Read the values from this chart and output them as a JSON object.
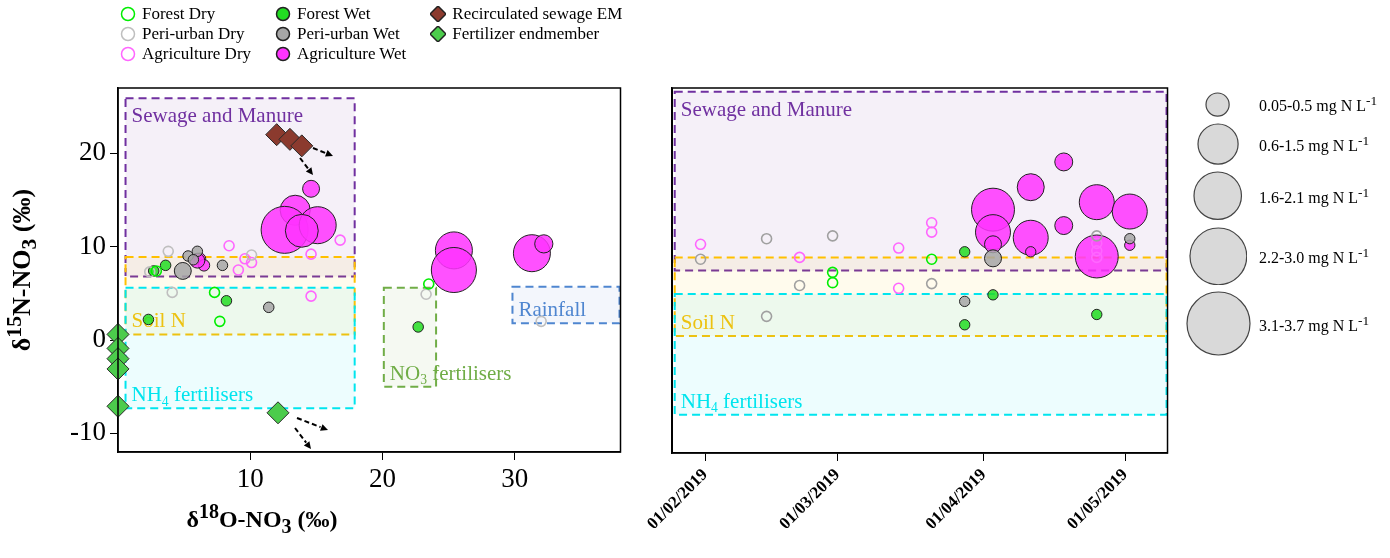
{
  "chart_data": [
    {
      "type": "bubble",
      "xlabel": "δ$^{18}$O-NO$_{3}$ (‰)",
      "ylabel": "δ$^{15}$N-NO$_{3}$ (‰)",
      "xlim": [
        0,
        38
      ],
      "ylim": [
        -12,
        27
      ],
      "xticks": [
        10,
        20,
        30
      ],
      "yticks": [
        -10,
        0,
        10,
        20
      ],
      "legend": "top",
      "series": [
        {
          "name": "Forest Dry",
          "type": "scatter",
          "marker": "circle",
          "color": "#00ee00",
          "x": [
            2.9,
            7.3,
            7.7,
            23.5
          ],
          "values": [
            7.4,
            5.1,
            2.0,
            6.0
          ]
        },
        {
          "name": "Peri-urban Dry",
          "type": "scatter",
          "marker": "circle",
          "color": "#bfbfbf",
          "x": [
            3.8,
            2.4,
            4.1,
            10.1,
            23.3,
            32.0
          ],
          "values": [
            9.5,
            7.3,
            5.1,
            9.1,
            4.9,
            2.0
          ]
        },
        {
          "name": "Agriculture Dry",
          "type": "scatter",
          "marker": "circle",
          "color": "#ff66ff",
          "x": [
            8.4,
            9.6,
            10.1,
            9.1,
            16.8,
            14.6,
            14.6
          ],
          "values": [
            10.1,
            8.7,
            8.3,
            7.5,
            10.7,
            9.2,
            4.7
          ]
        },
        {
          "name": "Forest Wet",
          "type": "bubble",
          "color": "#22dd22",
          "x": [
            2.7,
            3.6,
            8.2,
            2.3,
            22.7
          ],
          "values": [
            7.4,
            8.0,
            4.2,
            2.2,
            1.4
          ],
          "sizes": [
            0.05,
            0.05,
            0.05,
            0.05,
            0.05
          ]
        },
        {
          "name": "Peri-urban Wet",
          "type": "bubble",
          "color": "#a6a6a6",
          "x": [
            5.3,
            6.0,
            7.9,
            11.4,
            4.9,
            5.7
          ],
          "values": [
            9.0,
            9.5,
            8.0,
            3.5,
            7.4,
            8.6
          ],
          "sizes": [
            0.05,
            0.05,
            0.05,
            0.05,
            0.13,
            0.05
          ]
        },
        {
          "name": "Agriculture Wet",
          "type": "bubble",
          "color": "#ff33ff",
          "x": [
            6.2,
            6.5,
            6.0,
            14.6,
            13.4,
            12.6,
            15.1,
            13.9,
            25.4,
            25.4,
            31.3,
            32.2
          ],
          "values": [
            8.7,
            8.0,
            8.5,
            16.2,
            13.9,
            11.8,
            12.3,
            11.7,
            9.6,
            7.5,
            9.3,
            10.3
          ],
          "sizes": [
            0.06,
            0.06,
            0.1,
            0.13,
            0.41,
            1,
            0.62,
            0.49,
            0.62,
            0.92,
            0.62,
            0.15
          ]
        },
        {
          "name": "Recirculated sewage EM",
          "type": "scatter",
          "marker": "diamond",
          "color": "#8b3a2e",
          "x": [
            12.0,
            13.0,
            13.9
          ],
          "values": [
            22.0,
            21.5,
            20.8
          ]
        },
        {
          "name": "Fertilizer endmember",
          "type": "scatter",
          "marker": "diamond",
          "color": "#4ccc4c",
          "x": [
            0,
            0,
            0,
            0,
            0,
            12.1
          ],
          "values": [
            0.6,
            -0.9,
            -2.0,
            -3.1,
            -7.1,
            -7.8
          ]
        }
      ],
      "bands": [
        {
          "axis": "y",
          "from": 6.8,
          "to": 25.9,
          "label": "Sewage and Manure",
          "color": "#7030a0"
        },
        {
          "axis": "y",
          "from": 0.6,
          "to": 8.9,
          "label": "Soil N",
          "color": "#ffc000"
        },
        {
          "axis": "y",
          "from": -7.3,
          "to": 5.6,
          "label": "NH$_{4}$ fertilisers",
          "color": "#00e5ee"
        },
        {
          "axis": "y",
          "from": -5.0,
          "to": 5.6,
          "label": "NO$_{3}$ fertilisers",
          "color": "#70ad47"
        },
        {
          "axis": "y",
          "from": 1.8,
          "to": 5.7,
          "label": "Rainfall",
          "color": "#4f86d0"
        }
      ]
    },
    {
      "type": "bubble",
      "xlim": [
        "2019-01-25",
        "2019-05-10"
      ],
      "ylim": [
        -12,
        27
      ],
      "tick_labels": "x",
      "xticks": [
        {
          "value": "2019-02-01",
          "label": "01/02/2019"
        },
        {
          "value": "2019-03-01",
          "label": "01/03/2019"
        },
        {
          "value": "2019-04-01",
          "label": "01/04/2019"
        },
        {
          "value": "2019-05-01",
          "label": "01/05/2019"
        }
      ],
      "size_legend": [
        {
          "value": 0.5,
          "label": "0.05-0.5 mg N L$^{-1}$"
        },
        {
          "value": 1.5,
          "label": "0.6-1.5 mg N L$^{-1}$"
        },
        {
          "value": 2.1,
          "label": "1.6-2.1 mg N L$^{-1}$"
        },
        {
          "value": 3.0,
          "label": "2.2-3.0 mg N L$^{-1}$"
        },
        {
          "value": 3.7,
          "label": "3.1-3.7 mg N L$^{-1}$"
        }
      ],
      "series": [
        {
          "type": "scatter",
          "marker": "circle",
          "color": "#00ee00",
          "x": [
            "2019-02-28",
            "2019-02-28",
            "2019-03-21"
          ],
          "values": [
            7.3,
            6.2,
            8.7
          ]
        },
        {
          "type": "scatter",
          "marker": "circle",
          "color": "#a0a0a0",
          "x": [
            "2019-01-31",
            "2019-02-14",
            "2019-02-21",
            "2019-02-28",
            "2019-03-21",
            "2019-02-14",
            "2019-04-25"
          ],
          "values": [
            8.7,
            10.9,
            5.9,
            11.2,
            6.1,
            2.6,
            11.2
          ]
        },
        {
          "type": "scatter",
          "marker": "circle",
          "color": "#ff66ff",
          "x": [
            "2019-01-31",
            "2019-02-21",
            "2019-03-14",
            "2019-03-14",
            "2019-03-21",
            "2019-03-21",
            "2019-04-25",
            "2019-04-25",
            "2019-04-25"
          ],
          "values": [
            10.3,
            8.9,
            9.9,
            5.6,
            12.6,
            11.6,
            10.4,
            9.6,
            8.9
          ]
        },
        {
          "type": "bubble",
          "color": "#22dd22",
          "x": [
            "2019-03-28",
            "2019-03-28",
            "2019-04-03",
            "2019-04-25"
          ],
          "values": [
            9.5,
            1.7,
            4.9,
            2.8
          ],
          "sizes": [
            0.1,
            0.1,
            0.1,
            0.1
          ]
        },
        {
          "type": "bubble",
          "color": "#a6a6a6",
          "x": [
            "2019-03-28",
            "2019-04-03",
            "2019-05-02"
          ],
          "values": [
            4.2,
            8.8,
            10.9
          ],
          "sizes": [
            0.1,
            0.27,
            0.1
          ]
        },
        {
          "type": "bubble",
          "color": "#ff33ff",
          "x": [
            "2019-04-03",
            "2019-04-03",
            "2019-04-03",
            "2019-04-11",
            "2019-04-11",
            "2019-04-11",
            "2019-04-18",
            "2019-04-18",
            "2019-04-25",
            "2019-04-25",
            "2019-05-02",
            "2019-05-02"
          ],
          "values": [
            14.0,
            11.6,
            10.3,
            16.4,
            11.0,
            9.5,
            19.1,
            12.3,
            14.8,
            9.0,
            13.8,
            10.2
          ],
          "sizes": [
            1.72,
            1.14,
            0.27,
            0.68,
            1.14,
            0.1,
            0.3,
            0.3,
            1.14,
            1.72,
            1.14,
            0.1
          ]
        }
      ],
      "bands": [
        {
          "axis": "y",
          "from": 7.5,
          "to": 26.6,
          "label": "Sewage and Manure",
          "color": "#7030a0"
        },
        {
          "axis": "y",
          "from": 0.5,
          "to": 8.9,
          "label": "Soil N",
          "color": "#ffc000"
        },
        {
          "axis": "y",
          "from": -7.9,
          "to": 5.0,
          "label": "NH$_{4}$ fertilisers",
          "color": "#00e5ee"
        }
      ]
    }
  ]
}
